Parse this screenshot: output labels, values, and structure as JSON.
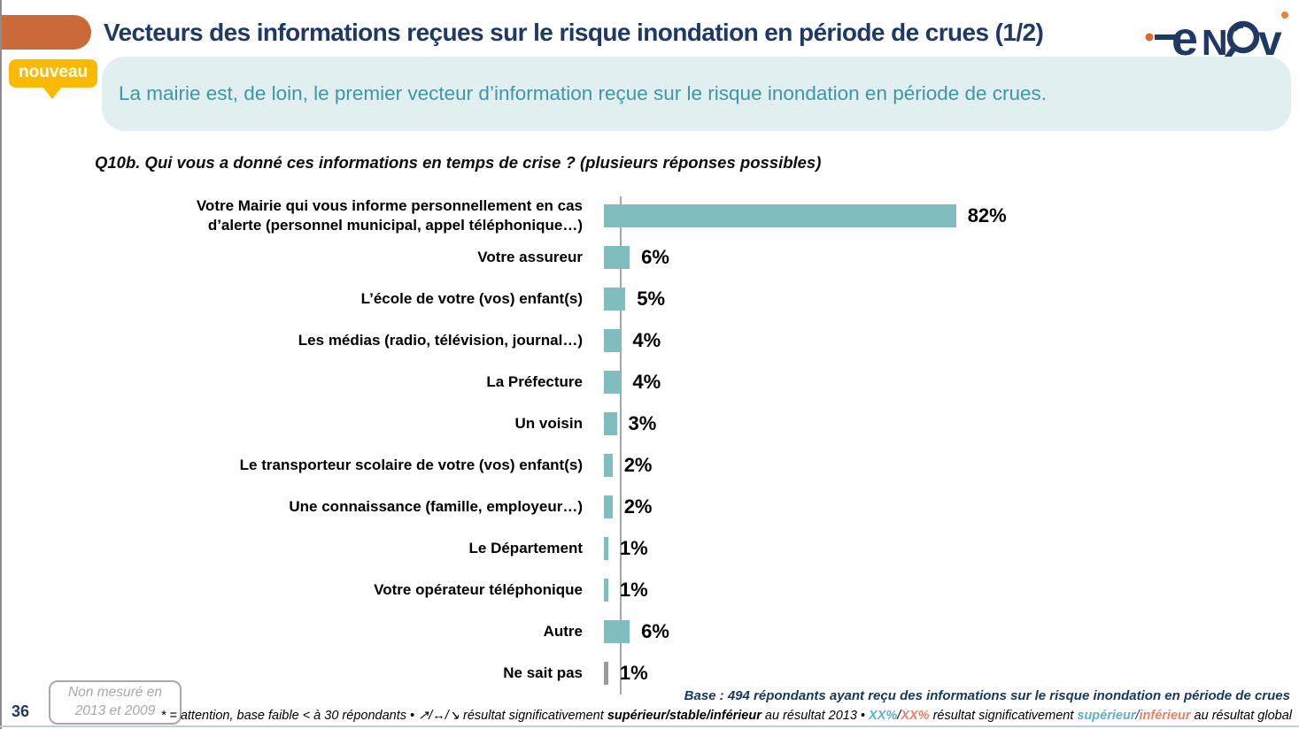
{
  "slide": {
    "title": "Vecteurs des informations reçues sur le risque inondation en période de crues (1/2)",
    "badge_label": "nouveau",
    "key_message": "La mairie est, de loin, le premier vecteur d’information reçue sur le risque inondation en période de crues.",
    "question": "Q10b. Qui vous a donné ces informations en temps de crise ? (plusieurs réponses possibles)",
    "page_number": "36",
    "not_measured_note": {
      "line1": "Non mesuré en",
      "line2": "2013 et 2009"
    },
    "base_note": "Base : 494 répondants ayant reçu des informations sur le risque inondation en période de crues",
    "logo_name": "enov"
  },
  "colors": {
    "title_navy": "#1f3864",
    "accent_orange_tab": "#ca6a38",
    "badge_yellow": "#fbb900",
    "banner_bg": "#e2eff1",
    "banner_text": "#3f96a6",
    "bar_teal": "#7fbdbf",
    "bar_gray": "#9b9b9b",
    "axis_gray": "#a6a6a6",
    "footnote_teal": "#5fb0c7",
    "footnote_orange": "#e9806a"
  },
  "chart_data": {
    "type": "bar",
    "orientation": "horizontal",
    "unit": "%",
    "value_axis_visible": false,
    "categories": [
      "Votre Mairie qui vous informe personnellement en cas d’alerte (personnel municipal, appel téléphonique…)",
      "Votre assureur",
      "L’école de votre (vos) enfant(s)",
      "Les médias (radio, télévision, journal…)",
      "La Préfecture",
      "Un voisin",
      "Le transporteur scolaire de votre (vos) enfant(s)",
      "Une connaissance (famille, employeur…)",
      "Le Département",
      "Votre opérateur téléphonique",
      "Autre",
      "Ne sait pas"
    ],
    "values": [
      82,
      6,
      5,
      4,
      4,
      3,
      2,
      2,
      1,
      1,
      6,
      1
    ],
    "data_labels": [
      "82%",
      "6%",
      "5%",
      "4%",
      "4%",
      "3%",
      "2%",
      "2%",
      "1%",
      "1%",
      "6%",
      "1%"
    ],
    "bar_colors": [
      "#7fbdbf",
      "#7fbdbf",
      "#7fbdbf",
      "#7fbdbf",
      "#7fbdbf",
      "#7fbdbf",
      "#7fbdbf",
      "#7fbdbf",
      "#7fbdbf",
      "#7fbdbf",
      "#7fbdbf",
      "#9b9b9b"
    ],
    "title": "",
    "xlabel": "",
    "ylabel": ""
  },
  "footnote_segments": [
    {
      "text": "* = attention, base faible < à 30 répondants • "
    },
    {
      "text": "↗/↔/↘  "
    },
    {
      "text": "résultat significativement "
    },
    {
      "text": "supérieur/stable/inférieur",
      "bold": true
    },
    {
      "text": " au résultat 2013 • "
    },
    {
      "text": "XX%",
      "bold": true,
      "color": "#5fb0c7"
    },
    {
      "text": "/"
    },
    {
      "text": "XX%",
      "bold": true,
      "color": "#e9806a"
    },
    {
      "text": " résultat significativement "
    },
    {
      "text": "supérieur",
      "bold": true,
      "color": "#5fb0c7"
    },
    {
      "text": "/",
      "color": "#1f3864"
    },
    {
      "text": "inférieur",
      "bold": true,
      "color": "#e9806a"
    },
    {
      "text": " au résultat global"
    }
  ]
}
